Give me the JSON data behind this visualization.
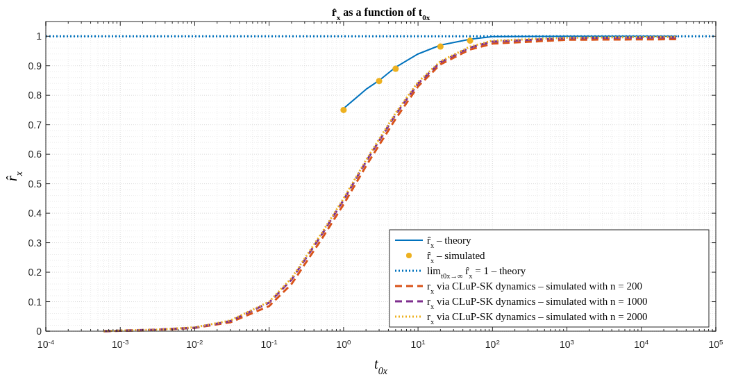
{
  "chart_data": {
    "type": "line",
    "title": "r̂$_{x}$ as a function of t$_{0x}$",
    "xlabel": "t$_{0x}$",
    "ylabel": "r̂$_{x}$",
    "log": "x",
    "xlim": [
      0.0001,
      100000
    ],
    "ylim": [
      0,
      1.05
    ],
    "xticks": [
      {
        "value": 0.0001,
        "label": "10$^{-4}$"
      },
      {
        "value": 0.001,
        "label": "10$^{-3}$"
      },
      {
        "value": 0.01,
        "label": "10$^{-2}$"
      },
      {
        "value": 0.1,
        "label": "10$^{-1}$"
      },
      {
        "value": 1,
        "label": "10$^{0}$"
      },
      {
        "value": 10,
        "label": "10$^{1}$"
      },
      {
        "value": 100,
        "label": "10$^{2}$"
      },
      {
        "value": 1000,
        "label": "10$^{3}$"
      },
      {
        "value": 10000,
        "label": "10$^{4}$"
      },
      {
        "value": 100000,
        "label": "10$^{5}$"
      }
    ],
    "yticks": [
      0,
      0.1,
      0.2,
      0.3,
      0.4,
      0.5,
      0.6,
      0.7,
      0.8,
      0.9,
      1
    ],
    "grid": true,
    "legend": "bottom right",
    "series": [
      {
        "name": "r̂$_{x}$ – theory",
        "color": "#0072bd",
        "line_style": "solid",
        "x": [
          1,
          2,
          3,
          5,
          10,
          20,
          50,
          100,
          1000,
          30000
        ],
        "values": [
          0.755,
          0.82,
          0.85,
          0.895,
          0.94,
          0.97,
          0.99,
          0.999,
          1,
          1
        ]
      },
      {
        "name": "r̂$_{x}$ – simulated",
        "type": "scatter",
        "color": "#edb120",
        "marker": "circle",
        "x": [
          1,
          3,
          5,
          20,
          50
        ],
        "values": [
          0.75,
          0.848,
          0.89,
          0.965,
          0.985
        ]
      },
      {
        "name": "lim$_{t0x→∞}$ r̂$_{x}$ = 1 – theory",
        "color": "#0072bd",
        "line_style": "dotted",
        "x": [
          0.0001,
          100000
        ],
        "values": [
          1,
          1
        ]
      },
      {
        "name": "r$_{x}$ via CLuP-SK dynamics – simulated with n = 200",
        "color": "#d95319",
        "line_style": "dashed",
        "x": [
          0.0006,
          0.001,
          0.003,
          0.01,
          0.03,
          0.1,
          0.2,
          0.5,
          1,
          2,
          5,
          10,
          20,
          50,
          100,
          1000,
          30000
        ],
        "values": [
          0,
          0.001,
          0.004,
          0.011,
          0.03,
          0.085,
          0.16,
          0.31,
          0.43,
          0.56,
          0.72,
          0.83,
          0.905,
          0.955,
          0.975,
          0.988,
          0.99
        ]
      },
      {
        "name": "r$_{x}$ via CLuP-SK dynamics – simulated with n = 1000",
        "color": "#7e2f8e",
        "line_style": "dashed",
        "x": [
          0.0006,
          0.001,
          0.003,
          0.01,
          0.03,
          0.1,
          0.2,
          0.5,
          1,
          2,
          5,
          10,
          20,
          50,
          100,
          1000,
          30000
        ],
        "values": [
          0,
          0.002,
          0.005,
          0.012,
          0.034,
          0.097,
          0.175,
          0.325,
          0.445,
          0.575,
          0.735,
          0.84,
          0.912,
          0.962,
          0.982,
          0.994,
          0.996
        ]
      },
      {
        "name": "r$_{x}$ via CLuP-SK dynamics – simulated with n = 2000",
        "color": "#edb120",
        "line_style": "dotted",
        "x": [
          0.0006,
          0.001,
          0.003,
          0.01,
          0.03,
          0.1,
          0.2,
          0.5,
          1,
          2,
          5,
          10,
          20,
          50,
          100,
          1000,
          30000
        ],
        "values": [
          0,
          0.002,
          0.005,
          0.013,
          0.036,
          0.1,
          0.18,
          0.33,
          0.45,
          0.58,
          0.74,
          0.845,
          0.915,
          0.965,
          0.985,
          0.995,
          0.998
        ]
      }
    ]
  }
}
